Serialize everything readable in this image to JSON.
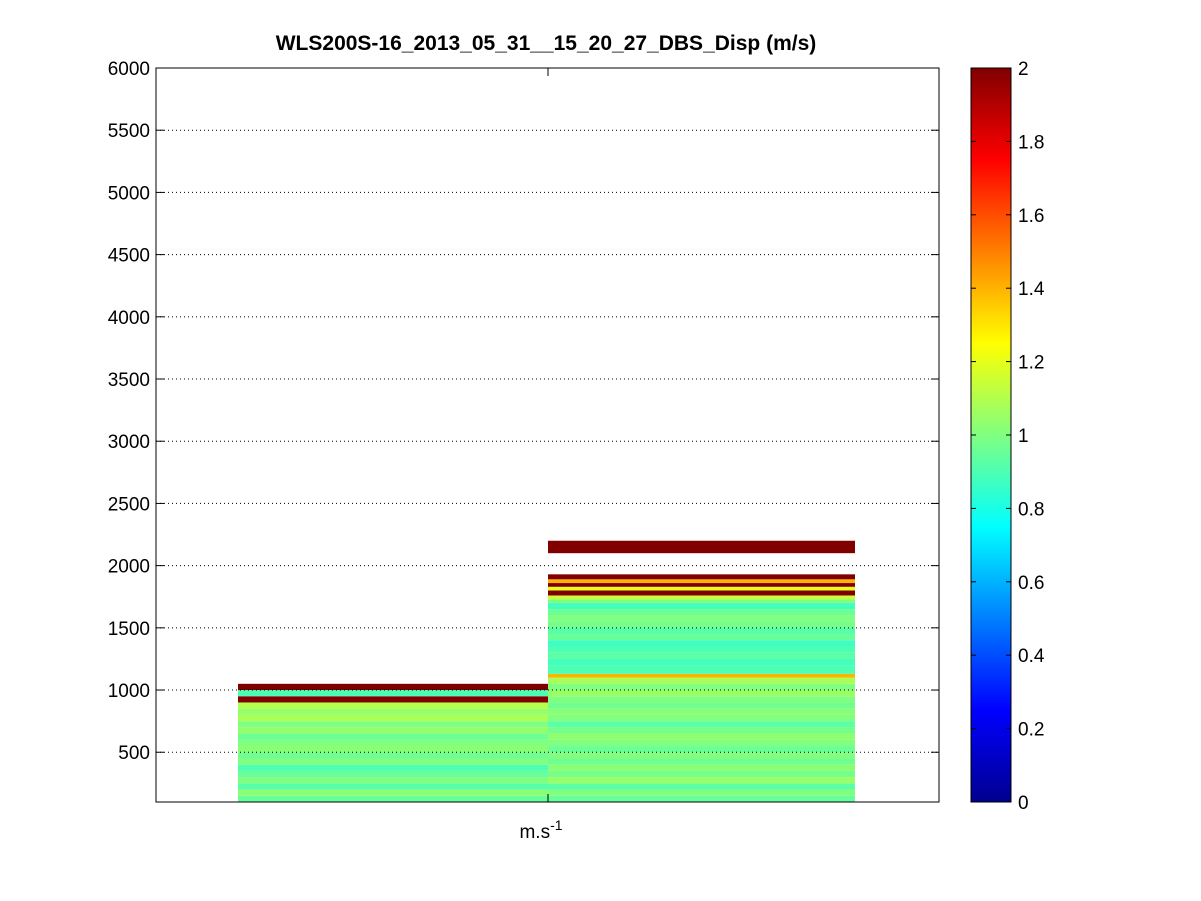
{
  "chart_data": {
    "type": "heatmap",
    "title": "WLS200S-16_2013_05_31__15_20_27_DBS_Disp (m/s)",
    "xlabel": "m.s",
    "xlabel_superscript": "-1",
    "ylabel": "",
    "ylim": [
      100,
      6000
    ],
    "yticks": [
      500,
      1000,
      1500,
      2000,
      2500,
      3000,
      3500,
      4000,
      4500,
      5000,
      5500,
      6000
    ],
    "grid": "y-dotted",
    "colormap": "jet",
    "colorbar": {
      "range": [
        0,
        2
      ],
      "ticks": [
        0,
        0.2,
        0.4,
        0.6,
        0.8,
        1,
        1.2,
        1.4,
        1.6,
        1.8,
        2
      ]
    },
    "columns": [
      {
        "name": "column-1",
        "layers": [
          {
            "z0": 100,
            "z1": 150,
            "value": 0.95
          },
          {
            "z0": 150,
            "z1": 200,
            "value": 1.02
          },
          {
            "z0": 200,
            "z1": 250,
            "value": 0.92
          },
          {
            "z0": 250,
            "z1": 300,
            "value": 1.0
          },
          {
            "z0": 300,
            "z1": 350,
            "value": 0.95
          },
          {
            "z0": 350,
            "z1": 400,
            "value": 0.9
          },
          {
            "z0": 400,
            "z1": 450,
            "value": 1.0
          },
          {
            "z0": 450,
            "z1": 500,
            "value": 0.97
          },
          {
            "z0": 500,
            "z1": 550,
            "value": 1.02
          },
          {
            "z0": 550,
            "z1": 600,
            "value": 1.0
          },
          {
            "z0": 600,
            "z1": 650,
            "value": 0.96
          },
          {
            "z0": 650,
            "z1": 700,
            "value": 1.04
          },
          {
            "z0": 700,
            "z1": 750,
            "value": 1.0
          },
          {
            "z0": 750,
            "z1": 800,
            "value": 1.08
          },
          {
            "z0": 800,
            "z1": 850,
            "value": 1.04
          },
          {
            "z0": 850,
            "z1": 900,
            "value": 1.1
          },
          {
            "z0": 900,
            "z1": 950,
            "value": 2.0
          },
          {
            "z0": 950,
            "z1": 1000,
            "value": 0.9
          },
          {
            "z0": 1000,
            "z1": 1050,
            "value": 2.0
          }
        ]
      },
      {
        "name": "column-2",
        "layers": [
          {
            "z0": 100,
            "z1": 150,
            "value": 0.95
          },
          {
            "z0": 150,
            "z1": 200,
            "value": 1.0
          },
          {
            "z0": 200,
            "z1": 250,
            "value": 0.93
          },
          {
            "z0": 250,
            "z1": 300,
            "value": 1.05
          },
          {
            "z0": 300,
            "z1": 350,
            "value": 0.98
          },
          {
            "z0": 350,
            "z1": 400,
            "value": 1.02
          },
          {
            "z0": 400,
            "z1": 450,
            "value": 0.97
          },
          {
            "z0": 450,
            "z1": 500,
            "value": 1.0
          },
          {
            "z0": 500,
            "z1": 550,
            "value": 0.96
          },
          {
            "z0": 550,
            "z1": 600,
            "value": 1.0
          },
          {
            "z0": 600,
            "z1": 650,
            "value": 1.03
          },
          {
            "z0": 650,
            "z1": 700,
            "value": 0.98
          },
          {
            "z0": 700,
            "z1": 750,
            "value": 0.93
          },
          {
            "z0": 750,
            "z1": 800,
            "value": 1.0
          },
          {
            "z0": 800,
            "z1": 850,
            "value": 1.02
          },
          {
            "z0": 850,
            "z1": 900,
            "value": 0.97
          },
          {
            "z0": 900,
            "z1": 950,
            "value": 1.0
          },
          {
            "z0": 950,
            "z1": 1000,
            "value": 1.05
          },
          {
            "z0": 1000,
            "z1": 1050,
            "value": 1.0
          },
          {
            "z0": 1050,
            "z1": 1100,
            "value": 1.08
          },
          {
            "z0": 1100,
            "z1": 1130,
            "value": 1.4
          },
          {
            "z0": 1130,
            "z1": 1200,
            "value": 0.9
          },
          {
            "z0": 1200,
            "z1": 1250,
            "value": 0.88
          },
          {
            "z0": 1250,
            "z1": 1300,
            "value": 0.93
          },
          {
            "z0": 1300,
            "z1": 1350,
            "value": 0.9
          },
          {
            "z0": 1350,
            "z1": 1400,
            "value": 0.87
          },
          {
            "z0": 1400,
            "z1": 1450,
            "value": 0.95
          },
          {
            "z0": 1450,
            "z1": 1500,
            "value": 0.92
          },
          {
            "z0": 1500,
            "z1": 1550,
            "value": 0.98
          },
          {
            "z0": 1550,
            "z1": 1600,
            "value": 1.0
          },
          {
            "z0": 1600,
            "z1": 1650,
            "value": 0.96
          },
          {
            "z0": 1650,
            "z1": 1700,
            "value": 0.88
          },
          {
            "z0": 1700,
            "z1": 1730,
            "value": 1.0
          },
          {
            "z0": 1730,
            "z1": 1760,
            "value": 1.15
          },
          {
            "z0": 1760,
            "z1": 1800,
            "value": 2.0
          },
          {
            "z0": 1800,
            "z1": 1830,
            "value": 1.2
          },
          {
            "z0": 1830,
            "z1": 1860,
            "value": 2.0
          },
          {
            "z0": 1860,
            "z1": 1890,
            "value": 1.4
          },
          {
            "z0": 1890,
            "z1": 1930,
            "value": 2.0
          },
          {
            "z0": 2100,
            "z1": 2200,
            "value": 2.0
          }
        ]
      }
    ]
  }
}
